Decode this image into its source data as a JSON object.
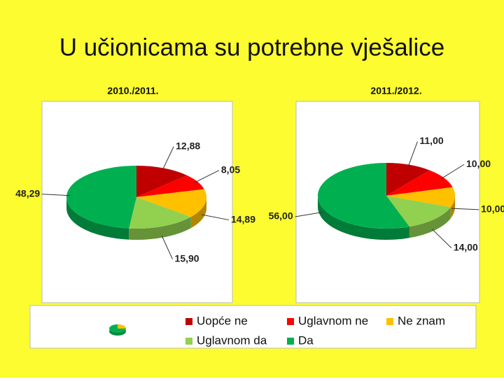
{
  "title": "U učionicama su potrebne vješalice",
  "legend": {
    "labels": [
      "Uopće ne",
      "Uglavnom ne",
      "Ne znam",
      "Uglavnom da",
      "Da"
    ],
    "colors": [
      "#c00000",
      "#ff0000",
      "#ffc000",
      "#92d050",
      "#00b050"
    ]
  },
  "chart_data": [
    {
      "type": "pie",
      "title": "2010./2011.",
      "values": [
        12.88,
        8.05,
        14.89,
        15.9,
        48.29
      ],
      "value_labels": [
        "12,88",
        "8,05",
        "14,89",
        "15,90",
        "48,29"
      ]
    },
    {
      "type": "pie",
      "title": "2011./2012.",
      "values": [
        11.0,
        10.0,
        10.0,
        14.0,
        56.0
      ],
      "value_labels": [
        "11,00",
        "10,00",
        "10,00",
        "14,00",
        "56,00"
      ]
    }
  ]
}
